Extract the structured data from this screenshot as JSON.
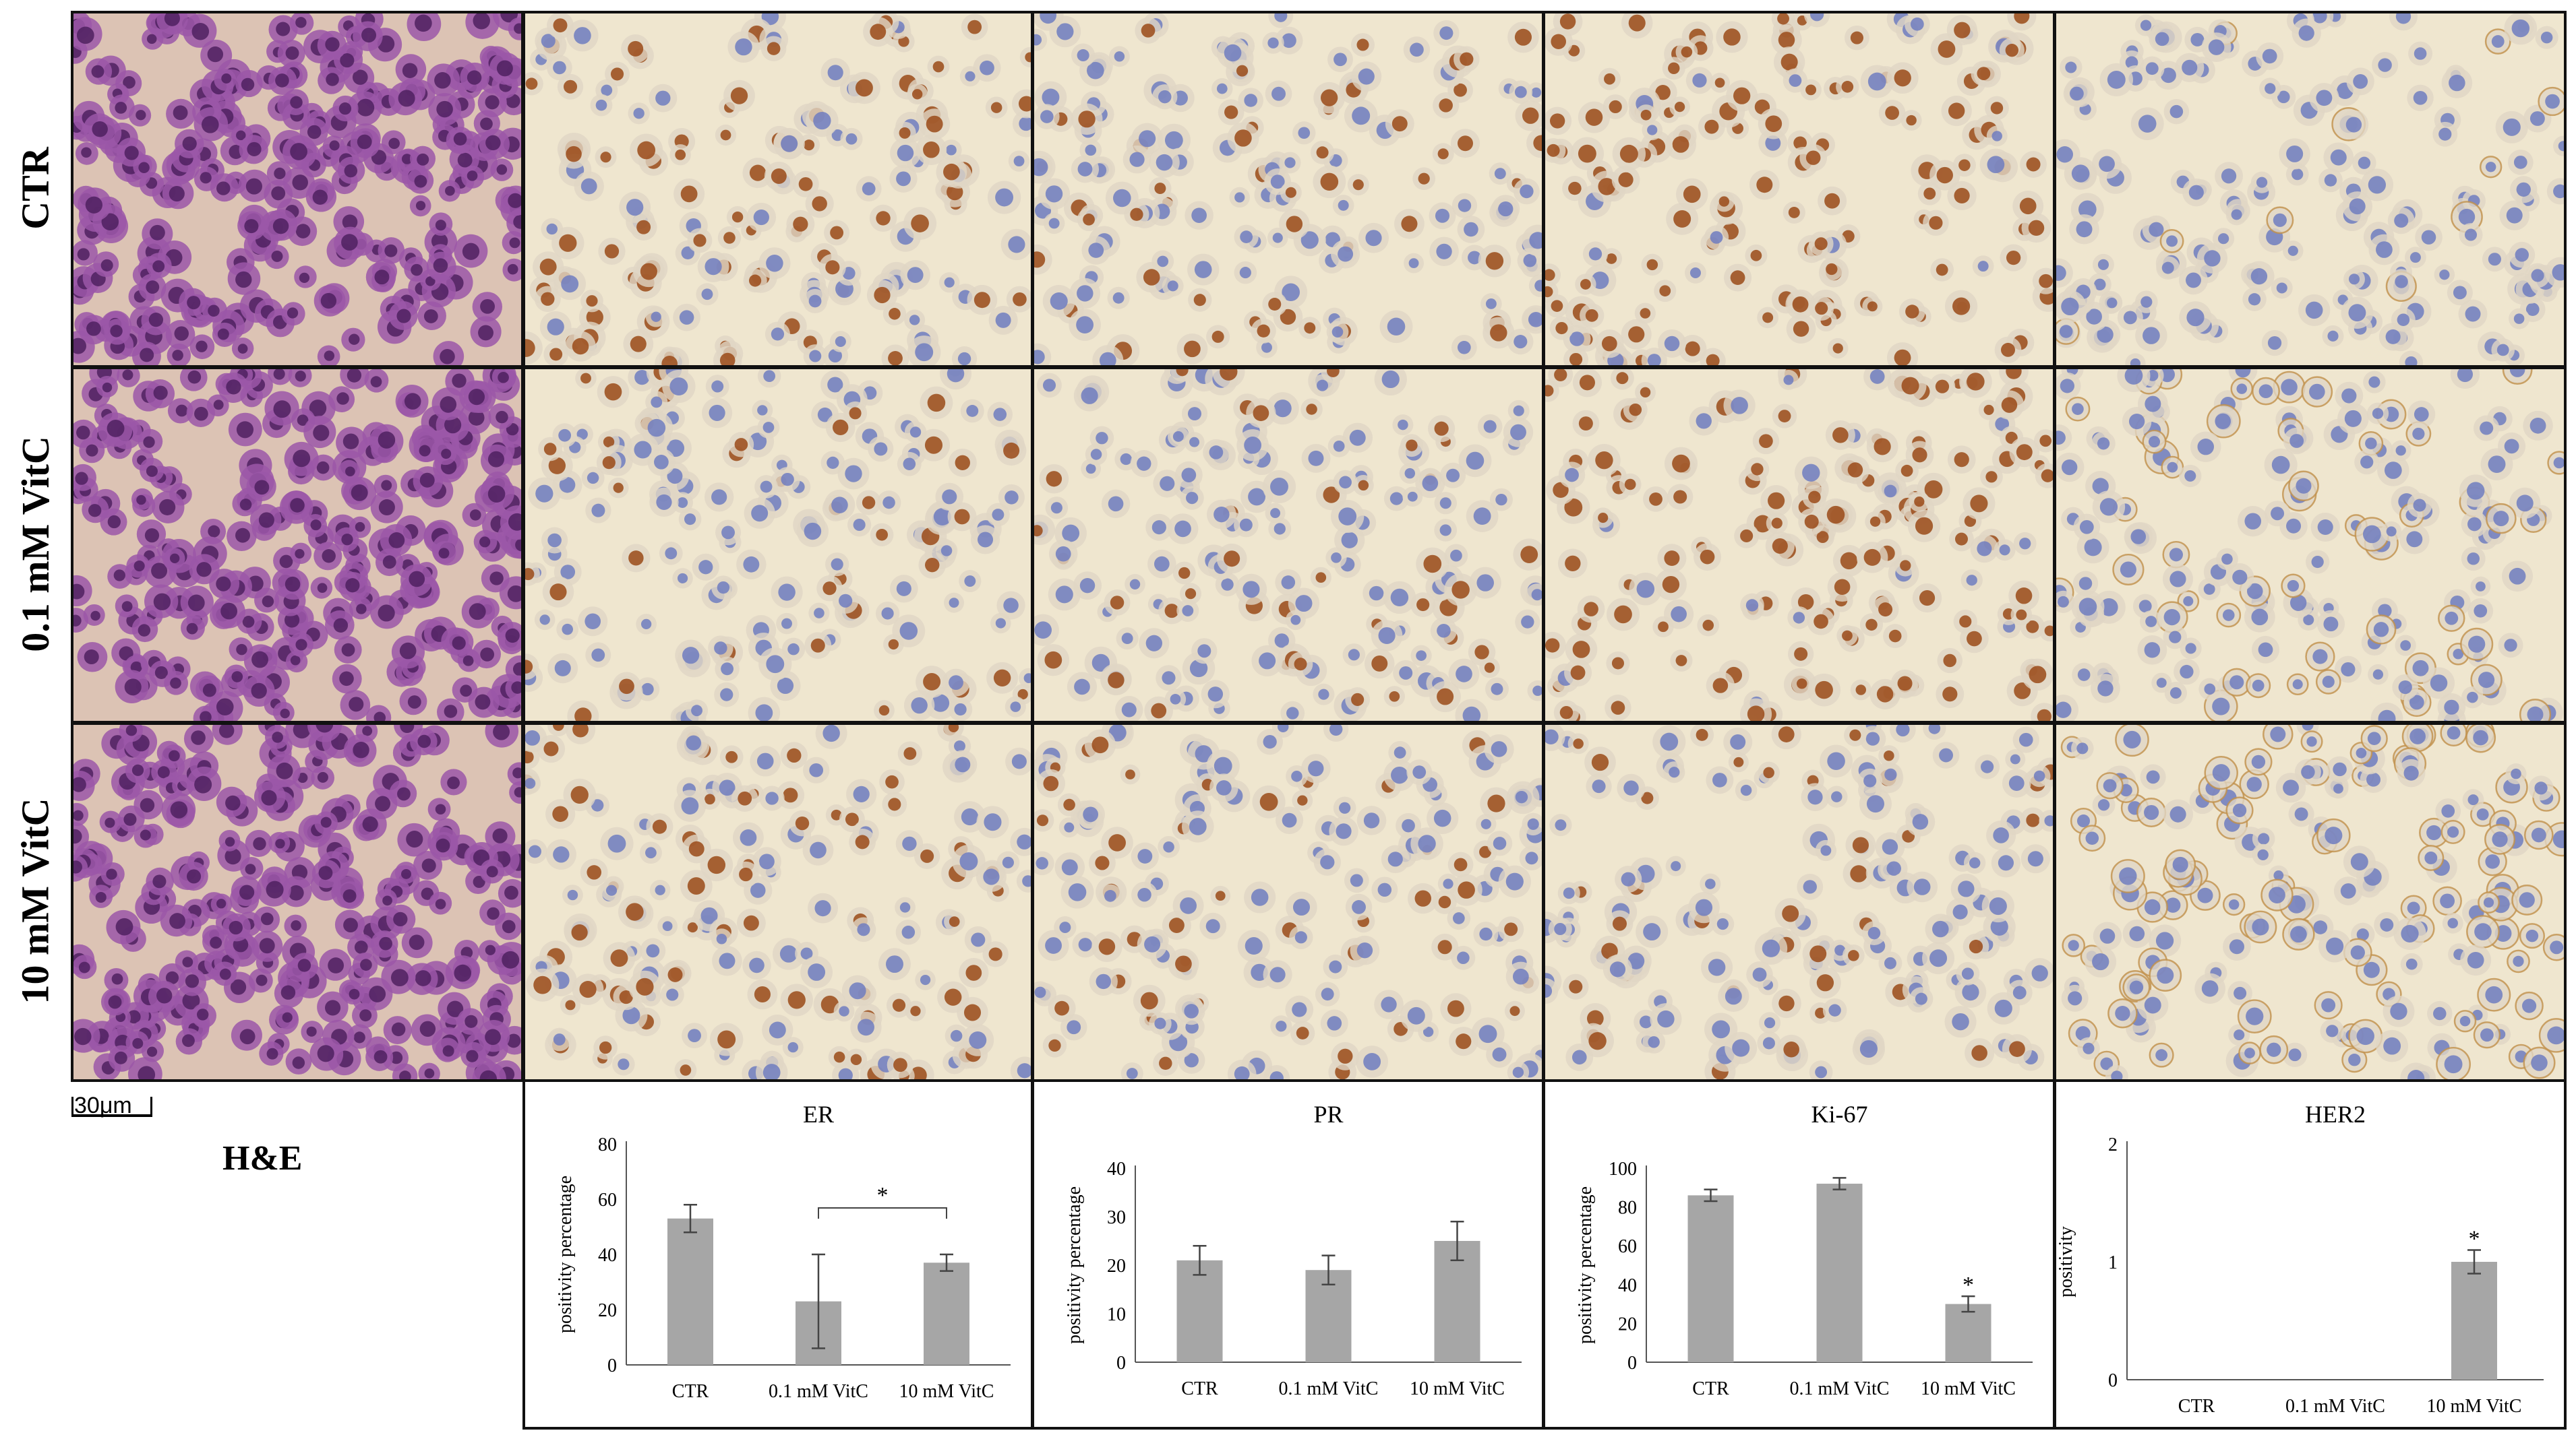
{
  "row_labels": [
    "CTR",
    "0.1 mM VitC",
    "10 mM VitC"
  ],
  "stain_label": "H&E",
  "scale_bar_label": "30μm",
  "colors": {
    "he_bg": "#dcc3b4",
    "he_cell": "#9b57a8",
    "he_nucleus": "#4a1d5b",
    "ihc_bg": "#efe6cf",
    "ihc_pale": "#e0d6c4",
    "ihc_blue": "#6f7dbf",
    "ihc_brown": "#9a4a17",
    "bar": "#a6a6a6"
  },
  "tile_stains": [
    [
      "he",
      "er",
      "pr",
      "ki",
      "her"
    ],
    [
      "he",
      "er",
      "pr",
      "ki",
      "her"
    ],
    [
      "he",
      "er",
      "pr",
      "ki",
      "her"
    ]
  ],
  "stain_intensity": [
    [
      0,
      0.55,
      0.35,
      0.85,
      0.05
    ],
    [
      0,
      0.25,
      0.25,
      0.85,
      0.3
    ],
    [
      0,
      0.4,
      0.35,
      0.2,
      0.55
    ]
  ],
  "chart_data": [
    {
      "type": "bar",
      "title": "ER",
      "categories": [
        "CTR",
        "0.1 mM VitC",
        "10 mM VitC"
      ],
      "values": [
        53,
        23,
        37
      ],
      "errors": [
        5,
        17,
        3
      ],
      "ylabel": "positivity percentage",
      "ylim": [
        0,
        80
      ],
      "yticks": [
        "0",
        "20",
        "40",
        "60",
        "80"
      ],
      "annotations": [
        {
          "text": "*",
          "type": "bracket",
          "from": 1,
          "to": 2
        }
      ]
    },
    {
      "type": "bar",
      "title": "PR",
      "categories": [
        "CTR",
        "0.1 mM VitC",
        "10 mM VitC"
      ],
      "values": [
        21,
        19,
        25
      ],
      "errors": [
        3,
        3,
        4
      ],
      "ylabel": "positivity percentage",
      "ylim": [
        0,
        40
      ],
      "yticks": [
        "0",
        "10",
        "20",
        "30",
        "40"
      ],
      "annotations": []
    },
    {
      "type": "bar",
      "title": "Ki-67",
      "categories": [
        "CTR",
        "0.1 mM VitC",
        "10 mM VitC"
      ],
      "values": [
        86,
        92,
        30
      ],
      "errors": [
        3,
        3,
        4
      ],
      "ylabel": "positivity percentage",
      "ylim": [
        0,
        100
      ],
      "yticks": [
        "0",
        "20",
        "40",
        "60",
        "80",
        "100"
      ],
      "annotations": [
        {
          "text": "*",
          "type": "above",
          "at": 2
        }
      ]
    },
    {
      "type": "bar",
      "title": "HER2",
      "categories": [
        "CTR",
        "0.1 mM VitC",
        "10 mM VitC"
      ],
      "values": [
        0,
        0,
        1
      ],
      "errors": [
        0,
        0,
        0.1
      ],
      "ylabel": "positivity",
      "ylim": [
        0,
        2
      ],
      "yticks": [
        "0",
        "1",
        "2"
      ],
      "annotations": [
        {
          "text": "*",
          "type": "above",
          "at": 2
        }
      ]
    }
  ]
}
